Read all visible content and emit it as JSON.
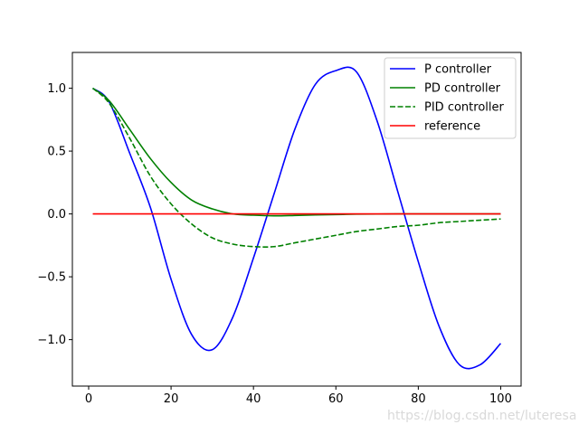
{
  "chart_data": {
    "type": "line",
    "title": "",
    "xlabel": "",
    "ylabel": "",
    "xlim": [
      -3.95,
      104.95
    ],
    "ylim": [
      -1.3695,
      1.2847
    ],
    "x_ticks": [
      0,
      20,
      40,
      60,
      80,
      100
    ],
    "x_tick_labels": [
      "0",
      "20",
      "40",
      "60",
      "80",
      "100"
    ],
    "y_ticks": [
      -1.0,
      -0.5,
      0.0,
      0.5,
      1.0
    ],
    "y_tick_labels": [
      "−1.0",
      "−0.5",
      "0.0",
      "0.5",
      "1.0"
    ],
    "grid": false,
    "legend_position": "top-right",
    "x": [
      1,
      5,
      10,
      15,
      20,
      25,
      30,
      35,
      40,
      45,
      50,
      55,
      60,
      65,
      70,
      75,
      80,
      85,
      90,
      95,
      100
    ],
    "series": [
      {
        "name": "P controller",
        "color": "#0000ff",
        "style": "solid",
        "values": [
          1.0,
          0.89,
          0.48,
          0.05,
          -0.52,
          -0.96,
          -1.08,
          -0.82,
          -0.35,
          0.16,
          0.67,
          1.03,
          1.14,
          1.13,
          0.74,
          0.18,
          -0.38,
          -0.89,
          -1.2,
          -1.2,
          -1.03
        ]
      },
      {
        "name": "PD controller",
        "color": "#008000",
        "style": "solid",
        "values": [
          1.0,
          0.9,
          0.67,
          0.44,
          0.25,
          0.11,
          0.04,
          0.0,
          -0.01,
          -0.015,
          -0.012,
          -0.008,
          -0.005,
          -0.002,
          -0.001,
          0.0,
          0.0,
          0.0,
          0.0,
          0.0,
          0.0
        ]
      },
      {
        "name": "PID controller",
        "color": "#008000",
        "style": "dashed",
        "values": [
          1.0,
          0.88,
          0.6,
          0.3,
          0.08,
          -0.08,
          -0.19,
          -0.24,
          -0.26,
          -0.26,
          -0.23,
          -0.2,
          -0.17,
          -0.14,
          -0.12,
          -0.1,
          -0.09,
          -0.07,
          -0.06,
          -0.05,
          -0.04
        ]
      },
      {
        "name": "reference",
        "color": "#ff0000",
        "style": "solid",
        "values": [
          0.0,
          0.0,
          0.0,
          0.0,
          0.0,
          0.0,
          0.0,
          0.0,
          0.0,
          0.0,
          0.0,
          0.0,
          0.0,
          0.0,
          0.0,
          0.0,
          0.0,
          0.0,
          0.0,
          0.0,
          0.0
        ]
      }
    ]
  },
  "watermark": "https://blog.csdn.net/luteresa"
}
